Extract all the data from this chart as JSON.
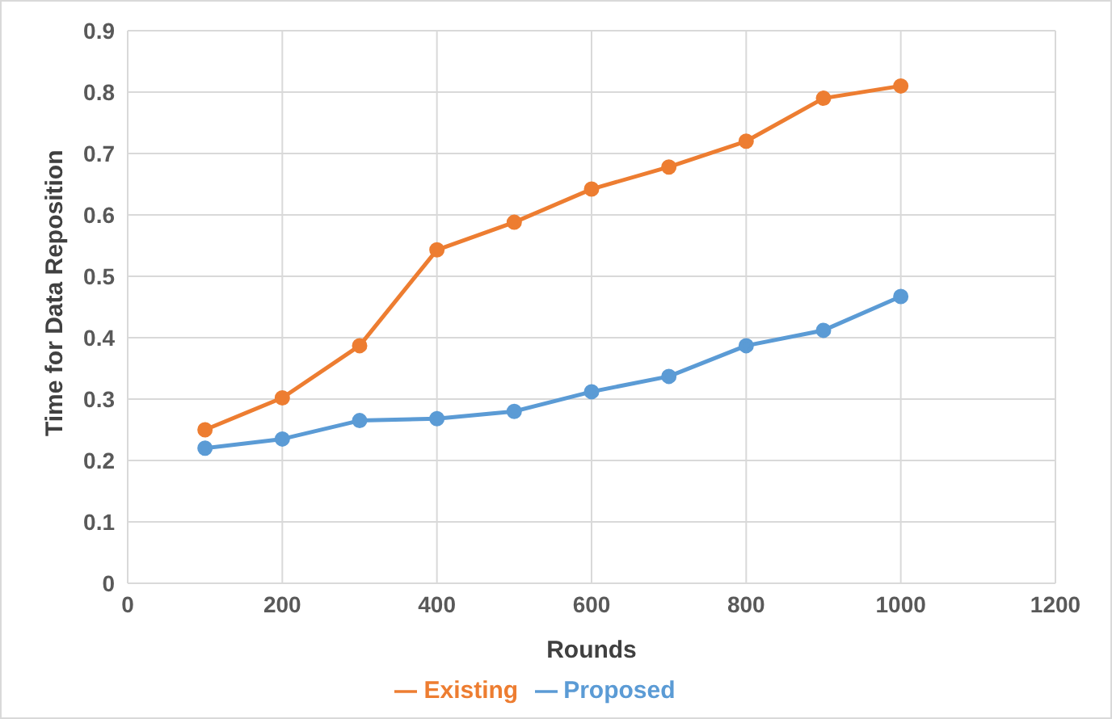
{
  "chart_data": {
    "type": "line",
    "xlabel": "Rounds",
    "ylabel": "Time for Data Reposition",
    "x": [
      100,
      200,
      300,
      400,
      500,
      600,
      700,
      800,
      900,
      1000
    ],
    "series": [
      {
        "name": "Proposed",
        "color": "#5b9bd5",
        "values": [
          0.22,
          0.235,
          0.265,
          0.268,
          0.28,
          0.312,
          0.337,
          0.387,
          0.412,
          0.467
        ]
      },
      {
        "name": "Existing",
        "color": "#ed7d31",
        "values": [
          0.25,
          0.302,
          0.387,
          0.543,
          0.588,
          0.642,
          0.678,
          0.72,
          0.79,
          0.81
        ]
      }
    ],
    "xlim": [
      0,
      1200
    ],
    "xticks": [
      0,
      200,
      400,
      600,
      800,
      1000,
      1200
    ],
    "ylim": [
      0,
      0.9
    ],
    "yticks": [
      0,
      0.1,
      0.2,
      0.3,
      0.4,
      0.5,
      0.6,
      0.7,
      0.8,
      0.9
    ],
    "grid": true,
    "legend": "bottom",
    "marker": "circle",
    "line_style": "solid"
  }
}
